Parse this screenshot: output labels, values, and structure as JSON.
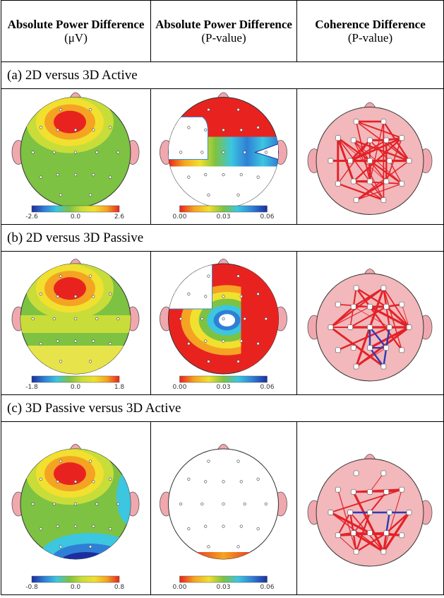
{
  "header": [
    {
      "title": "Absolute Power Difference",
      "unit": "(μV)"
    },
    {
      "title": "Absolute Power Difference",
      "unit": "(P-value)"
    },
    {
      "title": "Coherence Difference",
      "unit": "(P-value)"
    }
  ],
  "sections": [
    {
      "label": "(a) 2D versus 3D Active",
      "power_scale": [
        "-2.6",
        "0.0",
        "2.6"
      ],
      "pvalue_scale": [
        "0.00",
        "0.03",
        "0.06"
      ]
    },
    {
      "label": "(b) 2D versus 3D Passive",
      "power_scale": [
        "-1.8",
        "0.0",
        "1.8"
      ],
      "pvalue_scale": [
        "0.00",
        "0.03",
        "0.06"
      ]
    },
    {
      "label": "(c) 3D Passive versus 3D Active",
      "power_scale": [
        "-0.8",
        "0.0",
        "0.8"
      ],
      "pvalue_scale": [
        "0.00",
        "0.03",
        "0.06"
      ]
    }
  ]
}
